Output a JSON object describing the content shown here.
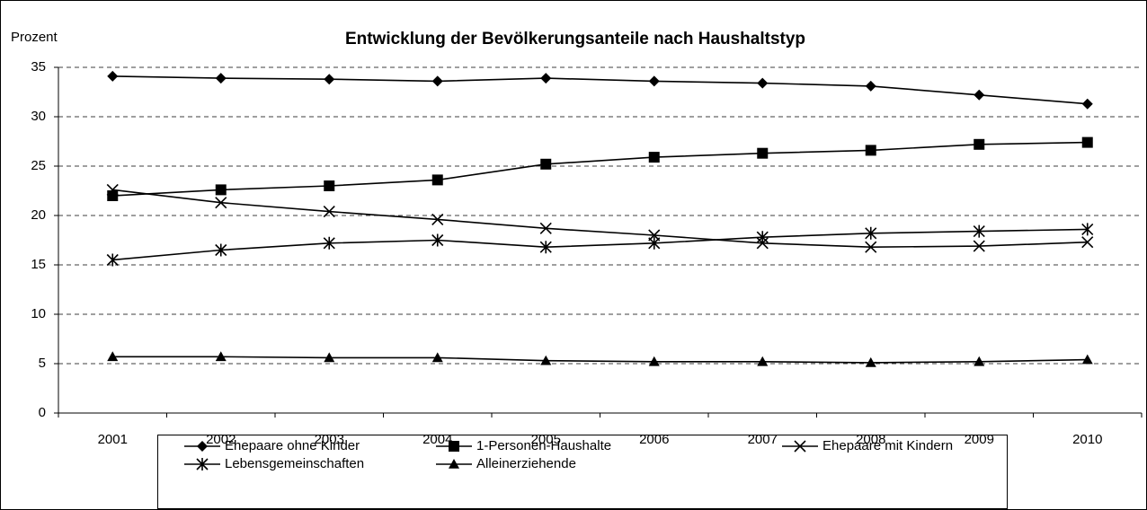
{
  "chart_data": {
    "type": "line",
    "title": "Entwicklung der Bevölkerungsanteile nach Haushaltstyp",
    "y_label": "Prozent",
    "categories": [
      "2001",
      "2002",
      "2003",
      "2004",
      "2005",
      "2006",
      "2007",
      "2008",
      "2009",
      "2010"
    ],
    "series": [
      {
        "name": "Ehepaare ohne Kinder",
        "color": "#000000",
        "marker": "diamond",
        "values": [
          34.1,
          33.9,
          33.8,
          33.6,
          33.9,
          33.6,
          33.4,
          33.1,
          32.2,
          31.3
        ]
      },
      {
        "name": "1-Personen-Haushalte",
        "color": "#000000",
        "marker": "square",
        "values": [
          22.0,
          22.6,
          23.0,
          23.6,
          25.2,
          25.9,
          26.3,
          26.6,
          27.2,
          27.4
        ]
      },
      {
        "name": "Ehepaare mit Kindern",
        "color": "#000000",
        "marker": "x",
        "values": [
          22.6,
          21.3,
          20.4,
          19.6,
          18.7,
          18.0,
          17.2,
          16.8,
          16.9,
          17.3
        ]
      },
      {
        "name": "Lebensgemeinschaften",
        "color": "#000000",
        "marker": "asterisk",
        "values": [
          15.5,
          16.5,
          17.2,
          17.5,
          16.8,
          17.2,
          17.8,
          18.2,
          18.4,
          18.6
        ]
      },
      {
        "name": "Alleinerziehende",
        "color": "#000000",
        "marker": "triangle",
        "values": [
          5.7,
          5.7,
          5.6,
          5.6,
          5.3,
          5.2,
          5.2,
          5.1,
          5.2,
          5.4
        ]
      }
    ],
    "ylim": [
      0,
      35
    ],
    "yticks": [
      0,
      5,
      10,
      15,
      20,
      25,
      30,
      35
    ],
    "grid": true,
    "legend": "bottom"
  }
}
